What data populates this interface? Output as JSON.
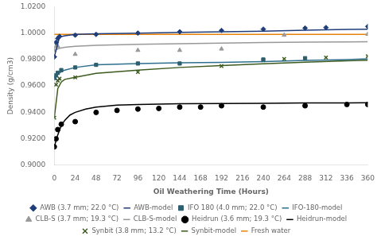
{
  "chart_data": {
    "type": "line",
    "xlabel": "Oil Weathering Time (Hours)",
    "ylabel": "Density (g/cm3)",
    "xlim": [
      0,
      360
    ],
    "ylim": [
      0.9,
      1.02
    ],
    "xticks": [
      0,
      24,
      48,
      72,
      96,
      120,
      144,
      168,
      192,
      216,
      240,
      264,
      288,
      312,
      336,
      360
    ],
    "yticks": [
      {
        "value": 0.9,
        "label": "0.9000"
      },
      {
        "value": 0.92,
        "label": "0.9200"
      },
      {
        "value": 0.94,
        "label": "0.9400"
      },
      {
        "value": 0.96,
        "label": "0.9600"
      },
      {
        "value": 0.98,
        "label": "0.9800"
      },
      {
        "value": 1.0,
        "label": "1.0000"
      },
      {
        "value": 1.02,
        "label": "1.0200"
      }
    ],
    "grid": false,
    "legend": "bottom",
    "series": [
      {
        "name": "AWB (3.7 mm; 22.0 °C)",
        "type": "scatter",
        "marker": "diamond",
        "color": "#1F3D7A",
        "x": [
          0,
          2,
          4,
          6,
          24,
          48,
          96,
          144,
          192,
          240,
          288,
          312,
          360
        ],
        "values": [
          0.982,
          0.993,
          0.996,
          0.9975,
          0.9985,
          0.999,
          1.0,
          1.001,
          1.002,
          1.003,
          1.0038,
          1.0042,
          1.005
        ]
      },
      {
        "name": "AWB-model",
        "type": "line",
        "line_style": "solid",
        "color": "#1F3D7A",
        "x": [
          0,
          6,
          12,
          24,
          48,
          96,
          144,
          192,
          240,
          288,
          336,
          360
        ],
        "values": [
          0.982,
          0.997,
          0.998,
          0.999,
          0.9995,
          1.0,
          1.0005,
          1.001,
          1.0015,
          1.0022,
          1.0028,
          1.003
        ]
      },
      {
        "name": "IFO 180 (4.0 mm; 22.0 °C)",
        "type": "scatter",
        "marker": "square",
        "color": "#2E5F6E",
        "x": [
          0,
          2,
          4,
          8,
          24,
          48,
          96,
          144,
          240,
          288
        ],
        "values": [
          0.966,
          0.968,
          0.97,
          0.972,
          0.974,
          0.976,
          0.977,
          0.977,
          0.98,
          0.981
        ]
      },
      {
        "name": "IFO-180-model",
        "type": "line",
        "line_style": "solid",
        "color": "#2E6F8E",
        "x": [
          0,
          6,
          12,
          24,
          48,
          96,
          144,
          192,
          240,
          288,
          336,
          360
        ],
        "values": [
          0.966,
          0.97,
          0.972,
          0.974,
          0.976,
          0.977,
          0.9775,
          0.9778,
          0.9785,
          0.9793,
          0.98,
          0.9805
        ]
      },
      {
        "name": "CLB-S (3.7 mm; 19.3 °C)",
        "type": "scatter",
        "marker": "triangle",
        "color": "#999999",
        "x": [
          0,
          2,
          4,
          24,
          96,
          144,
          192,
          264,
          360
        ],
        "values": [
          0.987,
          0.99,
          0.99,
          0.984,
          0.987,
          0.987,
          0.988,
          0.9985,
          0.9992
        ]
      },
      {
        "name": "CLB-S-model",
        "type": "line",
        "line_style": "solid",
        "color": "#999999",
        "x": [
          0,
          6,
          12,
          24,
          48,
          96,
          144,
          192,
          240,
          288,
          336,
          360
        ],
        "values": [
          0.987,
          0.9885,
          0.9893,
          0.99,
          0.9908,
          0.9915,
          0.992,
          0.9924,
          0.9928,
          0.9931,
          0.9933,
          0.9934
        ]
      },
      {
        "name": "Heidrun (3.6 mm; 19.3 °C)",
        "type": "scatter",
        "marker": "circle",
        "color": "#000000",
        "x": [
          0,
          2,
          4,
          8,
          24,
          48,
          72,
          96,
          120,
          144,
          168,
          192,
          240,
          288,
          336,
          360
        ],
        "values": [
          0.914,
          0.92,
          0.927,
          0.931,
          0.933,
          0.94,
          0.9415,
          0.9425,
          0.943,
          0.944,
          0.944,
          0.945,
          0.944,
          0.945,
          0.946,
          0.946
        ]
      },
      {
        "name": "Heidrun-model",
        "type": "line",
        "line_style": "solid",
        "color": "#000000",
        "x": [
          0,
          4,
          8,
          12,
          18,
          24,
          36,
          48,
          72,
          96,
          144,
          192,
          240,
          288,
          336,
          360
        ],
        "values": [
          0.914,
          0.923,
          0.93,
          0.934,
          0.938,
          0.94,
          0.9425,
          0.944,
          0.9455,
          0.946,
          0.9465,
          0.9467,
          0.9469,
          0.9471,
          0.9472,
          0.9473
        ]
      },
      {
        "name": "Synbit (3.8 mm; 13.2 °C)",
        "type": "scatter",
        "marker": "x",
        "color": "#3D5A1E",
        "x": [
          0,
          2,
          4,
          6,
          24,
          96,
          192,
          240,
          264,
          312,
          360
        ],
        "values": [
          0.936,
          0.961,
          0.964,
          0.9655,
          0.9665,
          0.9705,
          0.975,
          0.9795,
          0.9805,
          0.9815,
          0.9825
        ]
      },
      {
        "name": "Synbit-model",
        "type": "line",
        "line_style": "solid",
        "color": "#3D5A1E",
        "x": [
          0,
          4,
          8,
          12,
          24,
          48,
          96,
          144,
          192,
          240,
          288,
          336,
          360
        ],
        "values": [
          0.936,
          0.958,
          0.963,
          0.965,
          0.9665,
          0.9695,
          0.972,
          0.974,
          0.9755,
          0.9768,
          0.978,
          0.979,
          0.9795
        ]
      },
      {
        "name": "Fresh water",
        "type": "hline",
        "line_style": "solid",
        "color": "#E8820A",
        "values": [
          0.999
        ]
      }
    ]
  }
}
